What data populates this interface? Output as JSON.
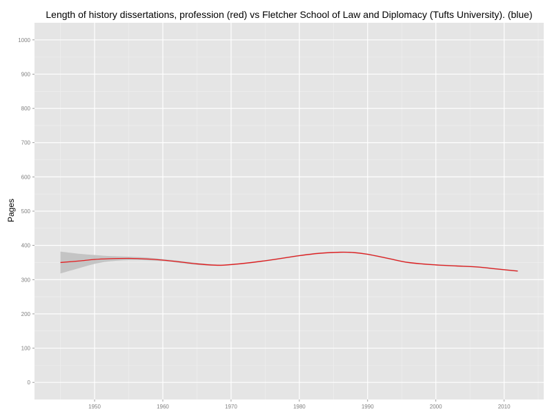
{
  "chart_data": {
    "type": "line",
    "title": "Length of history dissertations, profession (red) vs Fletcher School of Law and Diplomacy (Tufts University). (blue)",
    "xlabel": "",
    "ylabel": "Pages",
    "xlim": [
      1941.2,
      2015.8
    ],
    "ylim": [
      -50,
      1050
    ],
    "grid": true,
    "x_ticks": [
      1950,
      1960,
      1970,
      1980,
      1990,
      2000,
      2010
    ],
    "y_ticks": [
      0,
      100,
      200,
      300,
      400,
      500,
      600,
      700,
      800,
      900,
      1000
    ],
    "series": [
      {
        "name": "profession",
        "color": "#e41a1c",
        "x": [
          1945,
          1948,
          1950,
          1952,
          1955,
          1958,
          1960,
          1962,
          1965,
          1968,
          1970,
          1973,
          1976,
          1980,
          1983,
          1986,
          1988,
          1990,
          1993,
          1996,
          2000,
          2003,
          2006,
          2009,
          2012
        ],
        "y": [
          350,
          355,
          359,
          361,
          362,
          360,
          357,
          353,
          346,
          342,
          344,
          350,
          358,
          370,
          377,
          380,
          379,
          374,
          362,
          350,
          343,
          340,
          337,
          331,
          325
        ],
        "ci_lower": [
          318,
          335,
          346,
          353,
          357,
          356,
          354,
          350,
          343,
          340,
          342,
          348,
          356,
          368,
          375,
          378,
          377,
          372,
          360,
          348,
          341,
          338,
          335,
          329,
          323
        ],
        "ci_upper": [
          382,
          375,
          372,
          369,
          367,
          364,
          360,
          356,
          349,
          344,
          346,
          352,
          360,
          372,
          379,
          382,
          381,
          376,
          364,
          352,
          345,
          342,
          339,
          333,
          327
        ]
      }
    ]
  },
  "colors": {
    "panel_background": "#e5e5e5",
    "grid_major": "#ffffff",
    "grid_minor": "#f0f0f0",
    "ribbon": "#c4c4c4",
    "line": "#e41a1c",
    "tick_text": "#7f7f7f"
  }
}
